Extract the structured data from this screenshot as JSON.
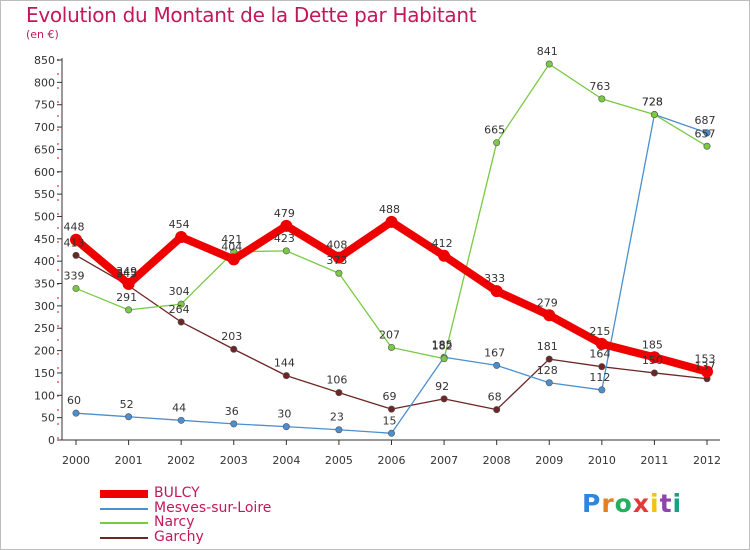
{
  "title": "Evolution du Montant de la Dette par Habitant",
  "unit_label": "(en €)",
  "logo_text": "Proxiti",
  "chart_data": {
    "type": "line",
    "title": "Evolution du Montant de la Dette par Habitant",
    "ylabel": "(en €)",
    "xlabel": "",
    "x": [
      "2000",
      "2001",
      "2002",
      "2003",
      "2004",
      "2005",
      "2006",
      "2007",
      "2008",
      "2009",
      "2010",
      "2011",
      "2012"
    ],
    "ylim": [
      0,
      850
    ],
    "ytick_step": 50,
    "grid": false,
    "legend_position": "bottom-left",
    "series": [
      {
        "name": "BULCY",
        "color": "#ee0000",
        "values": [
          448,
          349,
          454,
          404,
          479,
          408,
          488,
          412,
          333,
          279,
          215,
          185,
          153
        ]
      },
      {
        "name": "Mesves-sur-Loire",
        "color": "#4c8fce",
        "values": [
          60,
          52,
          44,
          36,
          30,
          23,
          15,
          185,
          167,
          128,
          112,
          728,
          687
        ]
      },
      {
        "name": "Narcy",
        "color": "#7ac943",
        "values": [
          339,
          291,
          304,
          421,
          423,
          373,
          207,
          182,
          665,
          841,
          763,
          728,
          657
        ]
      },
      {
        "name": "Garchy",
        "color": "#6d2626",
        "values": [
          413,
          345,
          264,
          203,
          144,
          106,
          69,
          92,
          68,
          181,
          164,
          150,
          137
        ]
      }
    ]
  }
}
